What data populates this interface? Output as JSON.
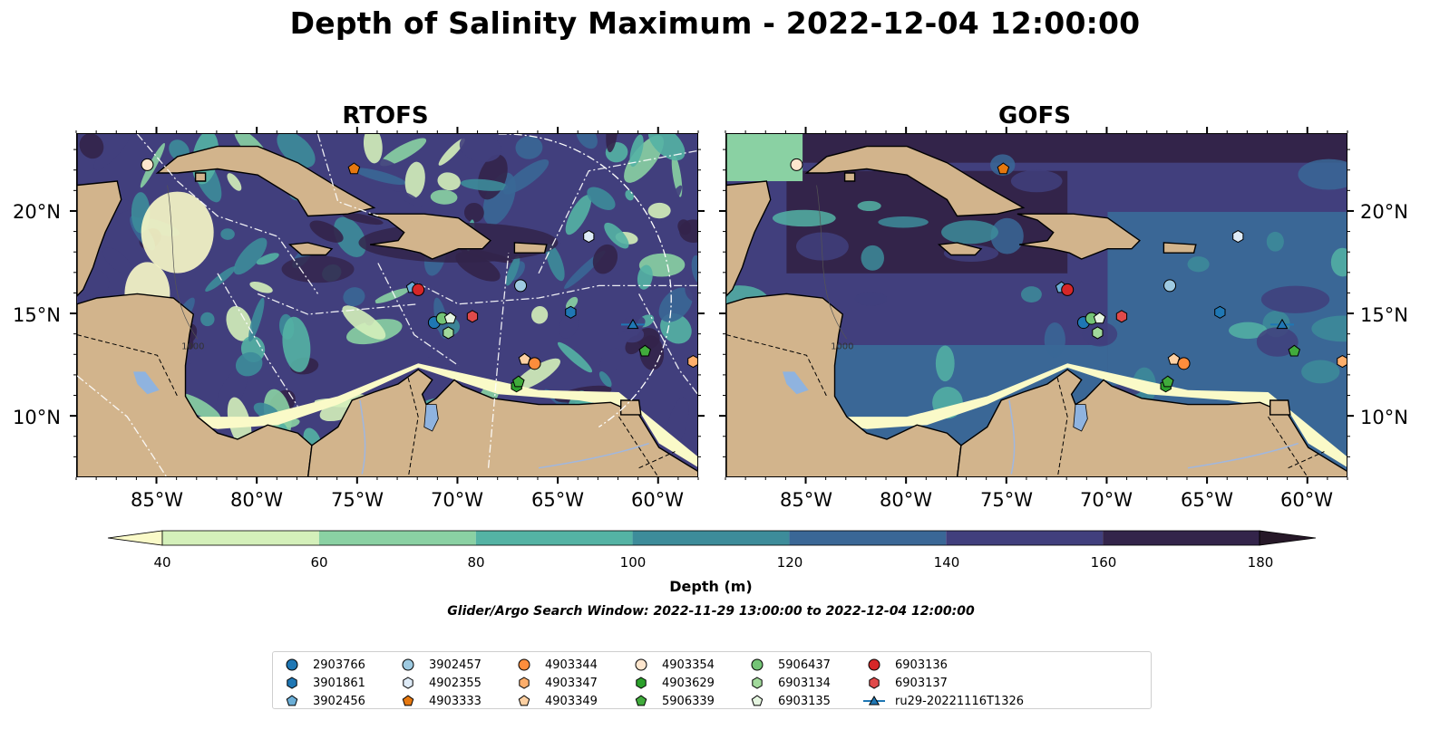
{
  "title": "Depth of Salinity Maximum - 2022-12-04 12:00:00",
  "panels": [
    {
      "title": "RTOFS",
      "model": "rtofs"
    },
    {
      "title": "GOFS",
      "model": "gofs"
    }
  ],
  "axes": {
    "lon_ticks": [
      "85°W",
      "80°W",
      "75°W",
      "70°W",
      "65°W",
      "60°W"
    ],
    "lon_values": [
      -85,
      -80,
      -75,
      -70,
      -65,
      -60
    ],
    "lat_ticks": [
      "20°N",
      "15°N",
      "10°N"
    ],
    "lat_values": [
      20,
      15,
      10
    ],
    "extent": {
      "lon_min": -89,
      "lon_max": -58,
      "lat_min": 7,
      "lat_max": 23.8
    },
    "contour_label": "1000"
  },
  "colorbar": {
    "label": "Depth (m)",
    "ticks": [
      "40",
      "60",
      "80",
      "100",
      "120",
      "140",
      "160",
      "180"
    ],
    "levels": [
      40,
      60,
      80,
      100,
      120,
      140,
      160,
      180
    ],
    "colors": [
      "#d4f0ba",
      "#8ad1a3",
      "#54b3a4",
      "#3d8c9a",
      "#3a6796",
      "#413f7d",
      "#33244a"
    ],
    "under_color": "#fafac8",
    "over_color": "#261828",
    "extend": "both"
  },
  "colors": {
    "land": "#d2b48c",
    "lakes": "#8fb3df",
    "rivers": "#9fb7e0"
  },
  "search_window": "Glider/Argo Search Window: 2022-11-29 13:00:00 to 2022-12-04 12:00:00",
  "legend": [
    {
      "id": "2903766",
      "marker": "circle",
      "color": "#1f77b4"
    },
    {
      "id": "3901861",
      "marker": "hexagon",
      "color": "#1f77b4"
    },
    {
      "id": "3902456",
      "marker": "pentagon",
      "color": "#6baed6"
    },
    {
      "id": "3902457",
      "marker": "circle",
      "color": "#9ecae1"
    },
    {
      "id": "4902355",
      "marker": "hexagon",
      "color": "#deebf7"
    },
    {
      "id": "4903333",
      "marker": "pentagon",
      "color": "#e6780f"
    },
    {
      "id": "4903344",
      "marker": "circle",
      "color": "#fd8d3c"
    },
    {
      "id": "4903347",
      "marker": "hexagon",
      "color": "#fdae6b"
    },
    {
      "id": "4903349",
      "marker": "pentagon",
      "color": "#fdd0a2"
    },
    {
      "id": "4903354",
      "marker": "circle",
      "color": "#fee6ce"
    },
    {
      "id": "4903629",
      "marker": "hexagon",
      "color": "#2ca02c"
    },
    {
      "id": "5906339",
      "marker": "pentagon",
      "color": "#41ab3c"
    },
    {
      "id": "5906437",
      "marker": "circle",
      "color": "#74c476"
    },
    {
      "id": "6903134",
      "marker": "hexagon",
      "color": "#a1d99b"
    },
    {
      "id": "6903135",
      "marker": "pentagon",
      "color": "#e5f5e0"
    },
    {
      "id": "6903136",
      "marker": "circle",
      "color": "#d62728"
    },
    {
      "id": "6903137",
      "marker": "hexagon",
      "color": "#e04a4a"
    },
    {
      "id": "ru29-20221116T1326",
      "marker": "triangle-line",
      "color": "#1f77b4"
    }
  ],
  "floats": [
    {
      "id": "4903354",
      "lon": -85.5,
      "lat": 22.3
    },
    {
      "id": "4903333",
      "lon": -75.2,
      "lat": 22.1
    },
    {
      "id": "4902355",
      "lon": -63.5,
      "lat": 18.8
    },
    {
      "id": "3902456",
      "lon": -72.3,
      "lat": 16.3
    },
    {
      "id": "6903136",
      "lon": -72.0,
      "lat": 16.2
    },
    {
      "id": "3902457",
      "lon": -66.9,
      "lat": 16.4
    },
    {
      "id": "3901861",
      "lon": -64.4,
      "lat": 15.1
    },
    {
      "id": "2903766",
      "lon": -71.2,
      "lat": 14.6
    },
    {
      "id": "5906437",
      "lon": -70.8,
      "lat": 14.8
    },
    {
      "id": "6903135",
      "lon": -70.4,
      "lat": 14.8
    },
    {
      "id": "6903134",
      "lon": -70.5,
      "lat": 14.1
    },
    {
      "id": "6903137",
      "lon": -69.3,
      "lat": 14.9
    },
    {
      "id": "4903349",
      "lon": -66.7,
      "lat": 12.8
    },
    {
      "id": "4903344",
      "lon": -66.2,
      "lat": 12.6
    },
    {
      "id": "4903347",
      "lon": -58.3,
      "lat": 12.7
    },
    {
      "id": "4903629",
      "lon": -67.1,
      "lat": 11.5
    },
    {
      "id": "5906339",
      "lon": -67.0,
      "lat": 11.7
    },
    {
      "id": "5906339",
      "lon": -60.7,
      "lat": 13.2
    },
    {
      "id": "ru29-20221116T1326",
      "lon": -61.3,
      "lat": 14.5
    }
  ]
}
